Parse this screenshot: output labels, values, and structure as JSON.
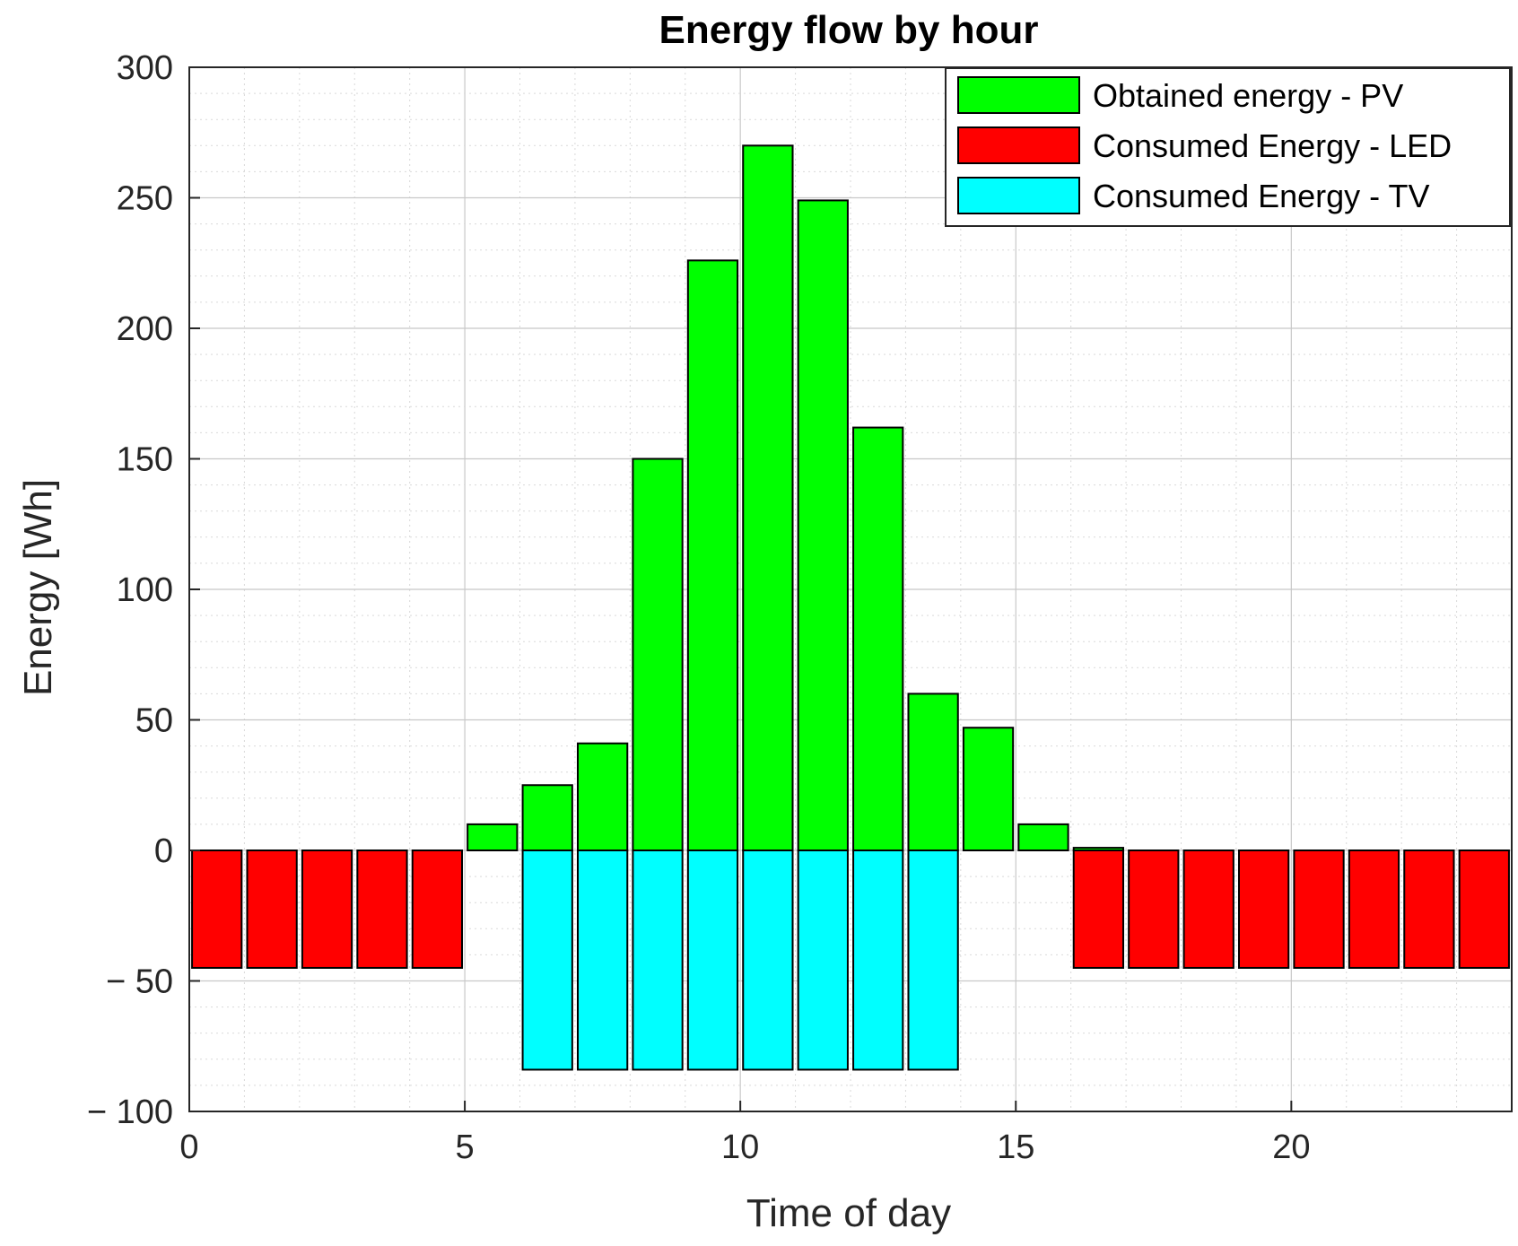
{
  "chart_data": {
    "type": "bar",
    "title": "Energy flow by hour",
    "xlabel": "Time of day",
    "ylabel": "Energy [Wh]",
    "xlim": [
      0,
      24
    ],
    "ylim": [
      -100,
      300
    ],
    "xticks": [
      0,
      5,
      10,
      15,
      20
    ],
    "xtick_labels": [
      "0",
      "5",
      "10",
      "15",
      "20"
    ],
    "yticks": [
      300,
      250,
      200,
      150,
      100,
      50,
      0,
      -50,
      -100
    ],
    "ytick_labels": [
      "300",
      "250",
      "200",
      "150",
      "100",
      "50",
      "0",
      "− 50",
      "− 100"
    ],
    "grid": true,
    "minor_grid": true,
    "legend_position": "top-right",
    "hours": [
      1,
      2,
      3,
      4,
      5,
      6,
      7,
      8,
      9,
      10,
      11,
      12,
      13,
      14,
      15,
      16,
      17,
      18,
      19,
      20,
      21,
      22,
      23,
      24
    ],
    "series": [
      {
        "name": "Obtained energy - PV",
        "color": "#00ff00",
        "values": [
          0,
          0,
          0,
          0,
          0,
          10,
          25,
          41,
          150,
          226,
          270,
          249,
          162,
          60,
          47,
          10,
          1,
          0,
          0,
          0,
          0,
          0,
          0,
          0
        ]
      },
      {
        "name": "Consumed Energy - LED",
        "color": "#ff0000",
        "values": [
          -45,
          -45,
          -45,
          -45,
          -45,
          0,
          0,
          0,
          0,
          0,
          0,
          0,
          0,
          0,
          0,
          0,
          -45,
          -45,
          -45,
          -45,
          -45,
          -45,
          -45,
          -45
        ]
      },
      {
        "name": "Consumed Energy - TV",
        "color": "#00ffff",
        "values": [
          0,
          0,
          0,
          0,
          0,
          0,
          -84,
          -84,
          -84,
          -84,
          -84,
          -84,
          -84,
          -84,
          0,
          0,
          0,
          0,
          0,
          0,
          0,
          0,
          0,
          0
        ]
      }
    ]
  }
}
